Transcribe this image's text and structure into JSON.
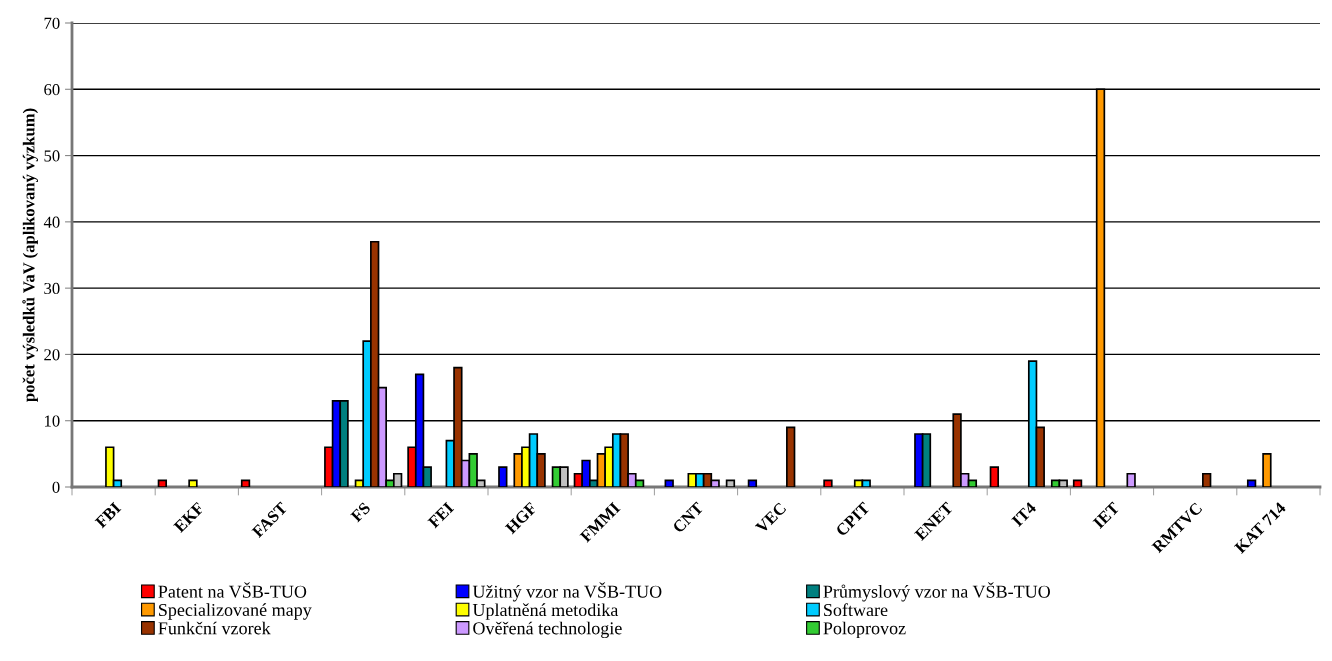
{
  "chart_data": {
    "type": "bar",
    "ylabel": "počet výsledků VaV (aplikovaný výzkum)",
    "categories": [
      "FBI",
      "EKF",
      "FAST",
      "FS",
      "FEI",
      "HGF",
      "FMMI",
      "CNT",
      "VEC",
      "CPIT",
      "ENET",
      "IT4",
      "IET",
      "RMTVC",
      "KAT 714"
    ],
    "series": [
      {
        "name": "Patent na VŠB-TUO",
        "color": "#ff0000",
        "values": [
          0,
          1,
          1,
          6,
          6,
          0,
          2,
          0,
          0,
          1,
          0,
          3,
          1,
          0,
          0
        ]
      },
      {
        "name": "Užitný vzor na VŠB-TUO",
        "color": "#0000ff",
        "values": [
          0,
          0,
          0,
          13,
          17,
          3,
          4,
          1,
          1,
          0,
          8,
          0,
          0,
          0,
          1
        ]
      },
      {
        "name": "Průmyslový vzor na VŠB-TUO",
        "color": "#008080",
        "values": [
          0,
          0,
          0,
          13,
          3,
          0,
          1,
          0,
          0,
          0,
          8,
          0,
          0,
          0,
          0
        ]
      },
      {
        "name": "Specializované mapy",
        "color": "#ff9900",
        "values": [
          0,
          0,
          0,
          0,
          0,
          5,
          5,
          0,
          0,
          0,
          0,
          0,
          60,
          0,
          5
        ]
      },
      {
        "name": "Uplatněná metodika",
        "color": "#ffff00",
        "values": [
          6,
          1,
          0,
          1,
          0,
          6,
          6,
          2,
          0,
          1,
          0,
          0,
          0,
          0,
          0
        ]
      },
      {
        "name": "Software",
        "color": "#00ccff",
        "values": [
          1,
          0,
          0,
          22,
          7,
          8,
          8,
          2,
          0,
          1,
          0,
          19,
          0,
          0,
          0
        ]
      },
      {
        "name": "Funkční vzorek",
        "color": "#993300",
        "values": [
          0,
          0,
          0,
          37,
          18,
          5,
          8,
          2,
          9,
          0,
          11,
          9,
          0,
          2,
          0
        ]
      },
      {
        "name": "Ověřená technologie",
        "color": "#cc99ff",
        "values": [
          0,
          0,
          0,
          15,
          4,
          0,
          2,
          1,
          0,
          0,
          2,
          0,
          2,
          0,
          0
        ]
      },
      {
        "name": "Poloprovoz",
        "color": "#33cc33",
        "values": [
          0,
          0,
          0,
          1,
          5,
          3,
          1,
          0,
          0,
          0,
          1,
          1,
          0,
          0,
          0
        ]
      },
      {
        "color": "#c0c0c0",
        "values": [
          0,
          0,
          0,
          2,
          1,
          3,
          0,
          1,
          0,
          0,
          0,
          1,
          0,
          0,
          0
        ]
      }
    ],
    "ylim": [
      0,
      70
    ],
    "yticks": [
      0,
      10,
      20,
      30,
      40,
      50,
      60,
      70
    ],
    "grid": "y",
    "legend": "bottom"
  }
}
